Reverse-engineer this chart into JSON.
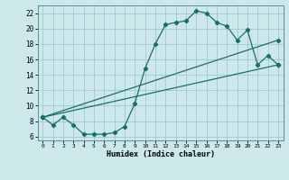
{
  "xlabel": "Humidex (Indice chaleur)",
  "bg_color": "#cce8ea",
  "grid_color": "#a0c8cc",
  "line_color": "#1a6e6a",
  "xlim": [
    -0.5,
    23.5
  ],
  "ylim": [
    5.5,
    23.0
  ],
  "xticks": [
    0,
    1,
    2,
    3,
    4,
    5,
    6,
    7,
    8,
    9,
    10,
    11,
    12,
    13,
    14,
    15,
    16,
    17,
    18,
    19,
    20,
    21,
    22,
    23
  ],
  "yticks": [
    6,
    8,
    10,
    12,
    14,
    16,
    18,
    20,
    22
  ],
  "series1_x": [
    0,
    1,
    2,
    3,
    4,
    5,
    6,
    7,
    8,
    9,
    10,
    11,
    12,
    13,
    14,
    15,
    16,
    17,
    18,
    19,
    20,
    21,
    22,
    23
  ],
  "series1_y": [
    8.5,
    7.5,
    8.5,
    7.5,
    6.3,
    6.3,
    6.3,
    6.5,
    7.3,
    10.3,
    14.8,
    18.0,
    20.5,
    20.8,
    21.0,
    22.3,
    22.0,
    20.8,
    20.3,
    18.5,
    19.8,
    15.3,
    16.5,
    15.3
  ],
  "series2_x": [
    0,
    23
  ],
  "series2_y": [
    8.5,
    18.5
  ],
  "series3_x": [
    0,
    23
  ],
  "series3_y": [
    8.5,
    15.3
  ]
}
